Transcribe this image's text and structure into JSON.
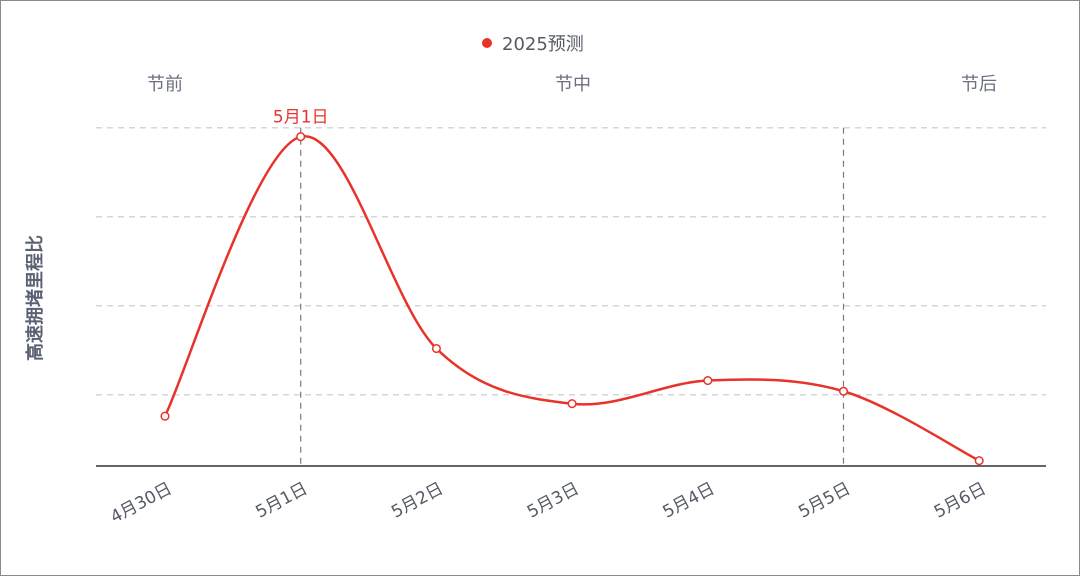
{
  "chart_data": {
    "type": "line",
    "title": "",
    "xlabel": "",
    "ylabel": "高速拥堵里程比",
    "categories": [
      "4月30日",
      "5月1日",
      "5月2日",
      "5月3日",
      "5月4日",
      "5月5日",
      "5月6日"
    ],
    "series": [
      {
        "name": "2025预测",
        "color": "#e8332a",
        "values": [
          0.28,
          1.85,
          0.66,
          0.35,
          0.48,
          0.42,
          0.03
        ]
      }
    ],
    "ylim": [
      0,
      2.0
    ],
    "grid": "horizontal dashed",
    "legend_position": "top-center",
    "phases": [
      "节前",
      "节中",
      "节后"
    ],
    "annotations": [
      {
        "text": "5月1日",
        "category": "5月1日"
      }
    ],
    "vertical_markers": [
      "5月1日",
      "5月5日"
    ],
    "axis_color": "#333333",
    "grid_color": "#c8c8c8"
  }
}
